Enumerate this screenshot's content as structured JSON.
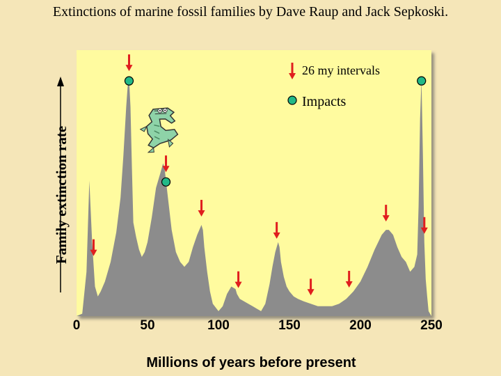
{
  "title": "Extinctions of marine fossil families by Dave Raup and Jack Sepkoski.",
  "chart_data": {
    "type": "area",
    "xlabel": "Millions of years before present",
    "ylabel": "Family extinction rate",
    "xlim": [
      0,
      250
    ],
    "ylim": [
      0,
      100
    ],
    "x_ticks": [
      0,
      50,
      100,
      150,
      200,
      250
    ],
    "x_tick_labels": [
      "0",
      "50",
      "100",
      "150",
      "200",
      "250"
    ],
    "series": [
      {
        "x": [
          0,
          4,
          7,
          9,
          11,
          13,
          15,
          17,
          20,
          24,
          28,
          31,
          33,
          35,
          36,
          37,
          38,
          39,
          40,
          42,
          44,
          46,
          48,
          50,
          53,
          56,
          59,
          61,
          62,
          63,
          65,
          67,
          70,
          73,
          76,
          79,
          82,
          85,
          88,
          89,
          90,
          92,
          94,
          96,
          100,
          103,
          106,
          109,
          112,
          113,
          115,
          118,
          121,
          124,
          127,
          130,
          133,
          136,
          138,
          140,
          142,
          143,
          144,
          146,
          148,
          150,
          153,
          156,
          160,
          165,
          170,
          175,
          180,
          185,
          190,
          195,
          200,
          205,
          210,
          215,
          218,
          220,
          223,
          226,
          229,
          232,
          235,
          238,
          240,
          241,
          242,
          243,
          244,
          245,
          246,
          247,
          248,
          250
        ],
        "values": [
          0,
          1,
          18,
          55,
          30,
          12,
          8,
          10,
          14,
          22,
          34,
          48,
          65,
          85,
          93,
          96,
          85,
          60,
          38,
          32,
          27,
          24,
          26,
          30,
          40,
          52,
          58,
          62,
          60,
          55,
          45,
          35,
          26,
          22,
          20,
          22,
          28,
          33,
          37,
          35,
          28,
          18,
          10,
          5,
          2,
          4,
          9,
          12,
          11,
          9,
          7,
          6,
          5,
          4,
          3,
          2,
          5,
          13,
          20,
          26,
          30,
          28,
          22,
          16,
          12,
          10,
          8,
          7,
          6,
          5,
          4,
          4,
          4,
          5,
          7,
          10,
          14,
          20,
          27,
          33,
          35,
          35,
          33,
          28,
          24,
          22,
          18,
          20,
          25,
          45,
          80,
          96,
          65,
          30,
          15,
          8,
          2,
          0
        ]
      }
    ],
    "arrows_x": [
      12,
      37,
      63,
      88,
      114,
      141,
      165,
      192,
      218,
      245
    ],
    "impacts_x": [
      37,
      63,
      243
    ],
    "legend": [
      {
        "symbol": "arrow",
        "label": "26 my intervals"
      },
      {
        "symbol": "impact",
        "label": "Impacts"
      }
    ],
    "legend_position": "top-right",
    "colors": {
      "plot_bg": "#fffb9f",
      "area": "#8c8c8c",
      "arrow": "#e01e1e",
      "impact": "#21b987"
    }
  },
  "icons": [
    "crocodile-icon"
  ]
}
